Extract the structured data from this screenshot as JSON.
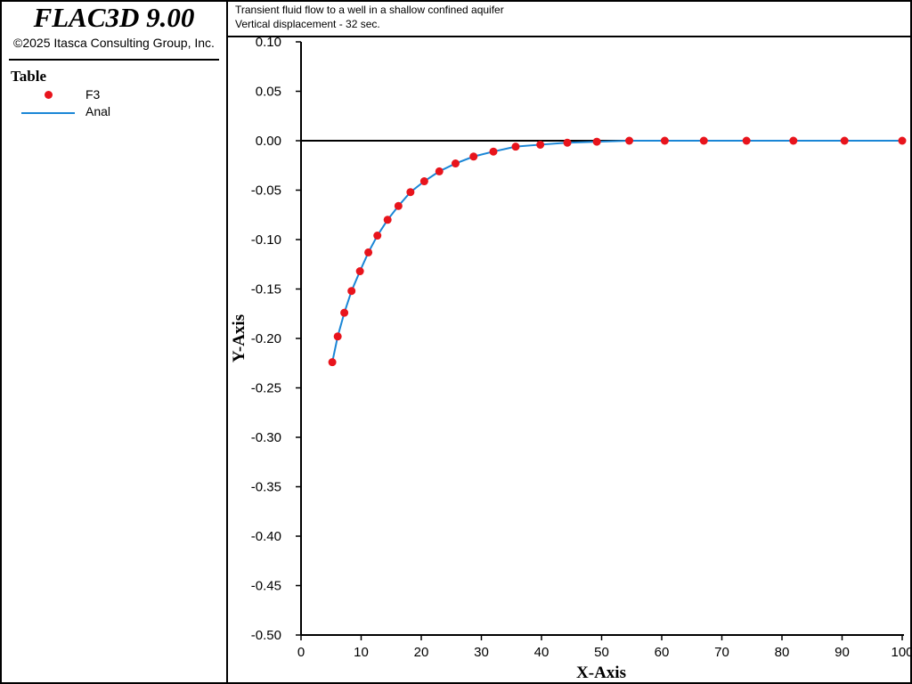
{
  "app": {
    "title": "FLAC3D 9.00",
    "copyright": "©2025 Itasca Consulting Group, Inc."
  },
  "legend": {
    "title": "Table",
    "items": [
      {
        "label": "F3",
        "color": "#e8141c",
        "kind": "marker"
      },
      {
        "label": "Anal",
        "color": "#1a86d6",
        "kind": "line"
      }
    ]
  },
  "header": {
    "line1": "Transient fluid flow to a well in a shallow confined aquifer",
    "line2": "Vertical displacement - 32 sec."
  },
  "chart_data": {
    "type": "scatter",
    "xlabel": "X-Axis",
    "ylabel": "Y-Axis",
    "xlim": [
      0,
      100
    ],
    "ylim": [
      -0.5,
      0.1
    ],
    "xticks": [
      0,
      10,
      20,
      30,
      40,
      50,
      60,
      70,
      80,
      90,
      100
    ],
    "yticks": [
      0.1,
      0.05,
      0.0,
      -0.05,
      -0.1,
      -0.15,
      -0.2,
      -0.25,
      -0.3,
      -0.35,
      -0.4,
      -0.45,
      -0.5
    ],
    "ytick_labels": [
      "0.10",
      "0.05",
      "0.00",
      "-0.05",
      "-0.10",
      "-0.15",
      "-0.20",
      "-0.25",
      "-0.30",
      "-0.35",
      "-0.40",
      "-0.45",
      "-0.50"
    ],
    "grid": false,
    "legend_position": "left-panel",
    "series": [
      {
        "name": "F3",
        "kind": "marker",
        "color": "#e8141c",
        "x": [
          5.2,
          6.1,
          7.2,
          8.4,
          9.8,
          11.2,
          12.7,
          14.4,
          16.2,
          18.2,
          20.5,
          23.0,
          25.7,
          28.7,
          32.0,
          35.7,
          39.8,
          44.3,
          49.2,
          54.6,
          60.5,
          67.0,
          74.1,
          81.9,
          90.4,
          100.0
        ],
        "y": [
          -0.224,
          -0.198,
          -0.174,
          -0.152,
          -0.132,
          -0.113,
          -0.096,
          -0.08,
          -0.066,
          -0.052,
          -0.041,
          -0.031,
          -0.023,
          -0.016,
          -0.011,
          -0.006,
          -0.004,
          -0.002,
          -0.001,
          0.0,
          0.0,
          0.0,
          0.0,
          0.0,
          0.0,
          0.0
        ]
      },
      {
        "name": "Anal",
        "kind": "line",
        "color": "#1a86d6",
        "x": [
          5.2,
          6.1,
          7.2,
          8.4,
          9.8,
          11.2,
          12.7,
          14.4,
          16.2,
          18.2,
          20.5,
          23.0,
          25.7,
          28.7,
          32.0,
          35.7,
          39.8,
          44.3,
          49.2,
          54.6,
          60.5,
          67.0,
          74.1,
          81.9,
          90.4,
          100.0
        ],
        "y": [
          -0.224,
          -0.198,
          -0.174,
          -0.152,
          -0.132,
          -0.113,
          -0.096,
          -0.08,
          -0.066,
          -0.052,
          -0.041,
          -0.031,
          -0.023,
          -0.016,
          -0.011,
          -0.006,
          -0.004,
          -0.002,
          -0.001,
          0.0,
          0.0,
          0.0,
          0.0,
          0.0,
          0.0,
          0.0
        ]
      }
    ],
    "reference_line": {
      "y": 0.0,
      "x_from": 0,
      "x_to": 57,
      "color": "#000000"
    }
  }
}
